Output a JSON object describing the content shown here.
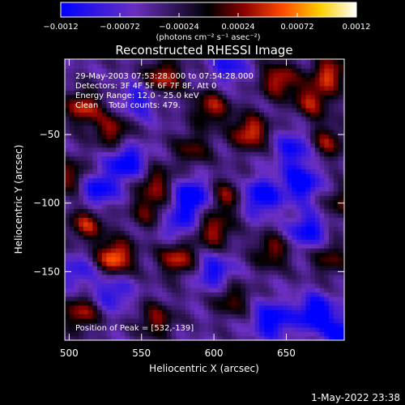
{
  "chart_data": {
    "type": "heatmap",
    "title": "Reconstructed RHESSI Image",
    "xlabel": "Heliocentric X (arcsec)",
    "ylabel": "Heliocentric Y (arcsec)",
    "xlim": [
      497,
      690
    ],
    "ylim": [
      -200,
      5
    ],
    "xticks": [
      500,
      550,
      600,
      650
    ],
    "yticks": [
      -50,
      -100,
      -150
    ],
    "xtick_labels": [
      "500",
      "550",
      "600",
      "650"
    ],
    "ytick_labels": [
      "−50",
      "−100",
      "−150"
    ],
    "colorbar": {
      "range": [
        -0.0012,
        0.0012
      ],
      "ticks": [
        -0.0012,
        -0.00072,
        -0.00024,
        0.00024,
        0.00072,
        0.0012
      ],
      "tick_labels": [
        "−0.0012",
        "−0.00072",
        "−0.00024",
        "0.00024",
        "0.00072",
        "0.0012"
      ],
      "units": "(photons cm⁻² s⁻¹ asec⁻²)",
      "colors": [
        "#0000ff",
        "#6a2fc0",
        "#000000",
        "#8a0000",
        "#ff4a00",
        "#ffd000",
        "#ffffff"
      ]
    },
    "annotations": [
      "29-May-2003 07:53:28.000 to 07:54:28.000",
      "Detectors: 3F 4F 5F 6F 7F 8F, Att 0",
      "Energy Range: 12.0 - 25.0 keV",
      "Clean    Total counts: 479.",
      "Position of Peak = [532,-139]"
    ],
    "peak": [
      532,
      -139
    ],
    "sources": [
      {
        "x": 532,
        "y": -139,
        "v": 0.00115
      },
      {
        "x": 510,
        "y": -30,
        "v": 0.0009
      },
      {
        "x": 512,
        "y": -115,
        "v": 0.0008
      },
      {
        "x": 530,
        "y": -47,
        "v": 0.00075
      },
      {
        "x": 565,
        "y": -8,
        "v": 0.0009
      },
      {
        "x": 560,
        "y": -85,
        "v": 0.0007
      },
      {
        "x": 575,
        "y": -140,
        "v": 0.0009
      },
      {
        "x": 555,
        "y": -105,
        "v": 0.0006
      },
      {
        "x": 598,
        "y": -30,
        "v": 0.0008
      },
      {
        "x": 625,
        "y": -48,
        "v": 0.001
      },
      {
        "x": 645,
        "y": -10,
        "v": 0.0009
      },
      {
        "x": 668,
        "y": -25,
        "v": 0.0008
      },
      {
        "x": 680,
        "y": -5,
        "v": 0.0009
      },
      {
        "x": 678,
        "y": -55,
        "v": 0.0007
      },
      {
        "x": 608,
        "y": -95,
        "v": 0.0007
      },
      {
        "x": 600,
        "y": -120,
        "v": 0.0008
      },
      {
        "x": 640,
        "y": -135,
        "v": 0.0007
      },
      {
        "x": 680,
        "y": -140,
        "v": 0.0006
      },
      {
        "x": 508,
        "y": -180,
        "v": 0.0008
      },
      {
        "x": 560,
        "y": -185,
        "v": 0.0007
      },
      {
        "x": 612,
        "y": -170,
        "v": 0.0006
      },
      {
        "x": 585,
        "y": -60,
        "v": 0.0006
      },
      {
        "x": 500,
        "y": -80,
        "v": 0.0007
      },
      {
        "x": 690,
        "y": -100,
        "v": 0.0006
      },
      {
        "x": 520,
        "y": -90,
        "v": -0.0008
      },
      {
        "x": 540,
        "y": -70,
        "v": -0.0009
      },
      {
        "x": 585,
        "y": -95,
        "v": -0.001
      },
      {
        "x": 632,
        "y": -95,
        "v": -0.0009
      },
      {
        "x": 660,
        "y": -85,
        "v": -0.0009
      },
      {
        "x": 665,
        "y": -120,
        "v": -0.0008
      },
      {
        "x": 640,
        "y": -185,
        "v": -0.0009
      },
      {
        "x": 670,
        "y": -180,
        "v": -0.001
      },
      {
        "x": 690,
        "y": -195,
        "v": -0.0009
      },
      {
        "x": 600,
        "y": -150,
        "v": -0.0007
      },
      {
        "x": 530,
        "y": -165,
        "v": -0.0006
      },
      {
        "x": 610,
        "y": 0,
        "v": -0.0006
      },
      {
        "x": 548,
        "y": -25,
        "v": -0.0006
      },
      {
        "x": 655,
        "y": -60,
        "v": -0.0007
      },
      {
        "x": 575,
        "y": -115,
        "v": -0.0006
      },
      {
        "x": 505,
        "y": -150,
        "v": -0.0005
      }
    ]
  },
  "footer": {
    "date": "1-May-2022 23:38"
  }
}
